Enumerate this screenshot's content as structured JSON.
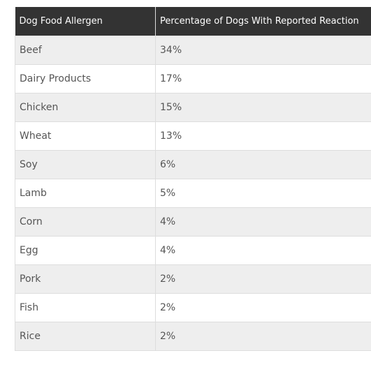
{
  "table": {
    "headers": [
      "Dog Food Allergen",
      "Percentage of Dogs With Reported Reaction"
    ],
    "rows": [
      [
        "Beef",
        "34%"
      ],
      [
        "Dairy Products",
        "17%"
      ],
      [
        "Chicken",
        "15%"
      ],
      [
        "Wheat",
        "13%"
      ],
      [
        "Soy",
        "6%"
      ],
      [
        "Lamb",
        "5%"
      ],
      [
        "Corn",
        "4%"
      ],
      [
        "Egg",
        "4%"
      ],
      [
        "Pork",
        "2%"
      ],
      [
        "Fish",
        "2%"
      ],
      [
        "Rice",
        "2%"
      ]
    ]
  },
  "colors": {
    "header_bg": "#333333",
    "header_text": "#ffffff",
    "row_odd_bg": "#eeeeee",
    "row_even_bg": "#ffffff",
    "border": "#dddddd",
    "cell_text": "#555555"
  }
}
